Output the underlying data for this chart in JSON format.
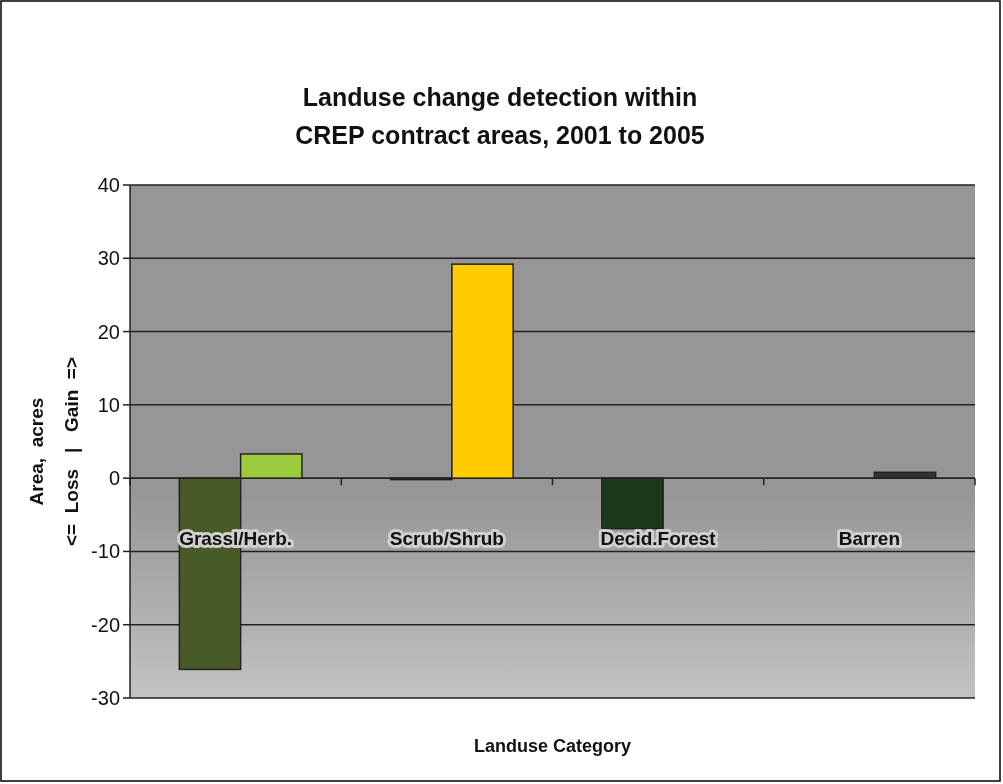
{
  "chart_data": {
    "type": "bar",
    "title": "Landuse change detection within\nCREP contract areas, 2001 to 2005",
    "xlabel": "Landuse Category",
    "ylabel": "Area,  acres\n<=  Loss   |   Gain  =>",
    "categories": [
      "Grassl/Herb.",
      "Scrub/Shrub",
      "Decid.Forest",
      "Barren"
    ],
    "series": [
      {
        "colors": [
          "#485a28",
          "#222222",
          "#1a3a1a",
          null
        ],
        "values": [
          -26.1,
          -0.2,
          -6.9,
          null
        ]
      },
      {
        "colors": [
          "#9acb3c",
          "#ffcc00",
          null,
          "#333333"
        ],
        "values": [
          3.3,
          29.2,
          null,
          0.8
        ]
      }
    ],
    "ylim": [
      -30,
      40
    ],
    "yticks": [
      -30,
      -20,
      -10,
      0,
      10,
      20,
      30,
      40
    ],
    "grid": "y"
  }
}
